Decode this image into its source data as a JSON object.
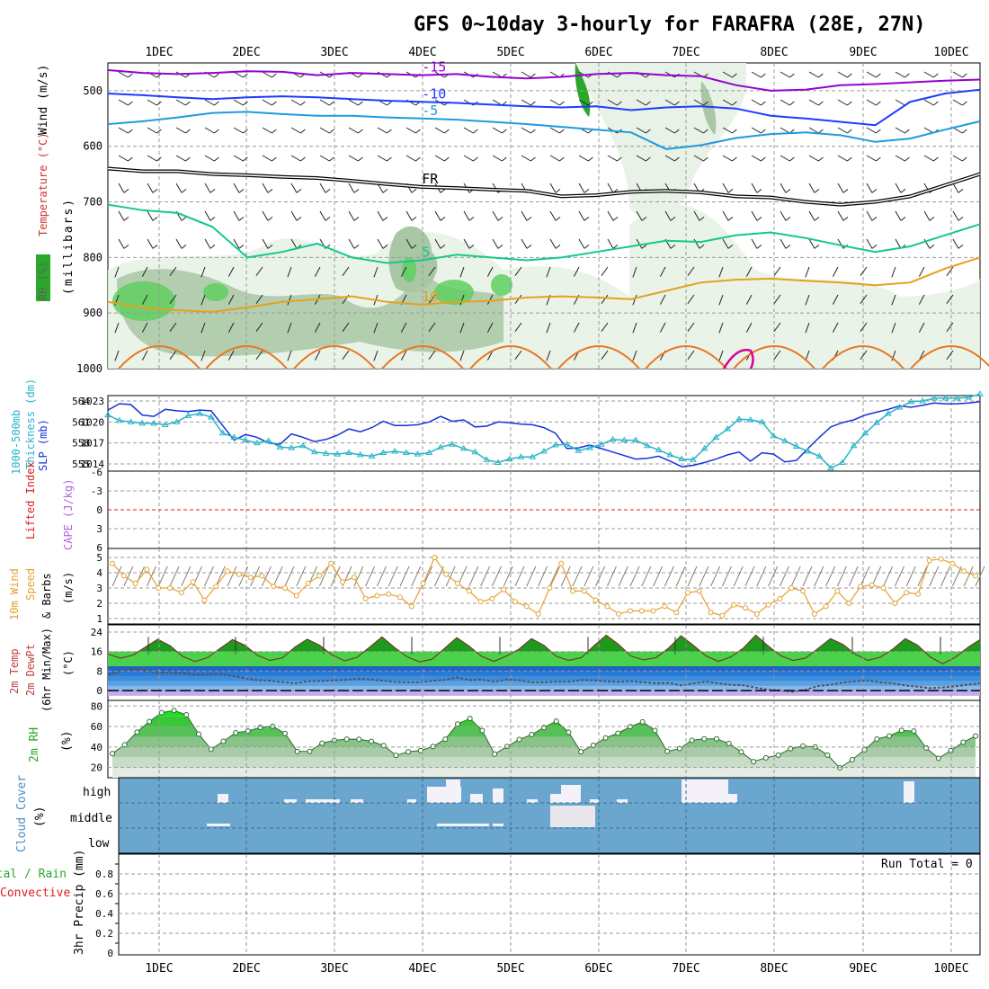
{
  "title": "GFS 0~10day 3-hourly for FARAFRA (28E, 27N)",
  "x_labels": [
    "1DEC",
    "2DEC",
    "3DEC",
    "4DEC",
    "5DEC",
    "6DEC",
    "7DEC",
    "8DEC",
    "9DEC",
    "10DEC"
  ],
  "chart_data": [
    {
      "panel": "upper-air",
      "type": "heatmap",
      "ylabel_parts": [
        "RH (%)",
        "Temperature (°C)",
        "Wind (m/s)",
        "(millibars)"
      ],
      "y_ticks": [
        500,
        600,
        700,
        800,
        900,
        1000
      ],
      "ylim": [
        1000,
        450
      ],
      "contour_labels": [
        "-15",
        "-10",
        "-5",
        "FR",
        "5",
        "10"
      ],
      "series": [
        {
          "name": "-15",
          "y": [
            463,
            468,
            470,
            468,
            465,
            466,
            472,
            468,
            470,
            472,
            470,
            475,
            478,
            475,
            470,
            468,
            472,
            474,
            490,
            500,
            498,
            490,
            488,
            485,
            482,
            480
          ]
        },
        {
          "name": "-10",
          "y": [
            505,
            508,
            512,
            515,
            512,
            510,
            512,
            515,
            518,
            520,
            522,
            525,
            528,
            530,
            528,
            535,
            530,
            528,
            532,
            545,
            550,
            556,
            562,
            520,
            505,
            498
          ]
        },
        {
          "name": "-5",
          "y": [
            560,
            555,
            548,
            540,
            538,
            542,
            545,
            545,
            548,
            550,
            552,
            556,
            560,
            565,
            570,
            575,
            605,
            598,
            585,
            578,
            575,
            580,
            592,
            586,
            570,
            555
          ]
        },
        {
          "name": "FR",
          "y": [
            640,
            645,
            645,
            650,
            652,
            655,
            657,
            662,
            668,
            673,
            675,
            678,
            680,
            690,
            688,
            682,
            680,
            683,
            690,
            692,
            700,
            705,
            700,
            690,
            670,
            650
          ]
        },
        {
          "name": "5",
          "y": [
            705,
            715,
            720,
            745,
            800,
            790,
            775,
            800,
            810,
            805,
            795,
            800,
            805,
            800,
            790,
            780,
            770,
            772,
            760,
            755,
            765,
            778,
            790,
            780,
            760,
            740
          ]
        },
        {
          "name": "10",
          "y": [
            880,
            890,
            895,
            898,
            890,
            880,
            875,
            870,
            880,
            885,
            880,
            878,
            872,
            870,
            872,
            875,
            860,
            845,
            840,
            838,
            842,
            845,
            850,
            845,
            820,
            800
          ]
        }
      ],
      "colors": {
        "minus15": "#9400d3",
        "minus10": "#1e3cff",
        "minus5": "#1e9be0",
        "freezing": "#000000",
        "plus5": "#14c88c",
        "plus10": "#e6a020",
        "plus15": "#e87820",
        "plus20": "#dc0096",
        "rh_light": "#e8f2e6",
        "rh_mid": "#a9c6a5",
        "rh_high": "#5fcf5f",
        "rh_dark": "#2aa82a"
      }
    },
    {
      "panel": "pressure-thickness",
      "type": "line",
      "ylabel_parts": [
        "1000-500mb",
        "Thickness (dm)",
        "SLP (mb)"
      ],
      "y_ticks_left": [
        564,
        561,
        558,
        555
      ],
      "y_ticks_right": [
        1023,
        1020,
        1017,
        1014
      ],
      "series": [
        {
          "name": "SLP",
          "color": "#1432dc",
          "values": [
            1021.7,
            1022.6,
            1022.5,
            1021.0,
            1020.8,
            1021.8,
            1021.6,
            1021.5,
            1021.7,
            1021.6,
            1019.5,
            1017.4,
            1018.2,
            1017.8,
            1017.0,
            1016.8,
            1018.3,
            1017.8,
            1017.2,
            1017.5,
            1018.1,
            1019.0,
            1018.6,
            1019.2,
            1020.1,
            1019.5,
            1019.5,
            1019.6,
            1020.0,
            1020.8,
            1020.1,
            1020.3,
            1019.3,
            1019.4,
            1020.0,
            1019.9,
            1019.7,
            1019.6,
            1019.2,
            1018.4,
            1016.2,
            1016.3,
            1016.7,
            1016.2,
            1015.7,
            1015.2,
            1014.7,
            1014.8,
            1015.1,
            1014.4,
            1013.6,
            1013.8,
            1014.2,
            1014.7,
            1015.3,
            1015.7,
            1014.4,
            1015.6,
            1015.4,
            1014.3,
            1014.5,
            1016.2,
            1017.8,
            1019.3,
            1019.9,
            1020.3,
            1021.0,
            1021.4,
            1021.8,
            1022.3,
            1022.1,
            1022.4,
            1022.7,
            1022.6,
            1022.6,
            1022.7,
            1022.9
          ]
        },
        {
          "name": "Thickness",
          "color": "#28b4c8",
          "values": [
            562.0,
            561.2,
            561.0,
            560.8,
            560.8,
            560.6,
            561.0,
            561.9,
            562.2,
            561.7,
            559.4,
            558.8,
            558.4,
            558.0,
            558.3,
            557.4,
            557.3,
            557.6,
            556.7,
            556.5,
            556.4,
            556.6,
            556.3,
            556.1,
            556.6,
            556.8,
            556.6,
            556.4,
            556.6,
            557.4,
            557.8,
            557.2,
            556.7,
            555.6,
            555.2,
            555.7,
            556.0,
            556.0,
            556.8,
            557.7,
            557.8,
            556.9,
            557.3,
            557.8,
            558.5,
            558.4,
            558.4,
            557.6,
            557.0,
            556.3,
            555.7,
            555.6,
            557.2,
            558.8,
            560.0,
            561.4,
            561.3,
            561.0,
            559.0,
            558.3,
            557.5,
            556.8,
            556.1,
            554.4,
            555.2,
            557.6,
            559.4,
            560.9,
            562.2,
            563.1,
            563.9,
            564.0,
            564.4,
            564.4,
            564.4,
            564.5,
            565.0
          ]
        }
      ]
    },
    {
      "panel": "instability",
      "type": "line",
      "ylabel_parts": [
        "Lifted Index",
        "CAPE (J/kg)"
      ],
      "y_ticks": [
        "-6",
        "-3",
        "0",
        "3",
        "6"
      ],
      "ylim": [
        6,
        -6
      ],
      "series": [
        {
          "name": "Lifted Index",
          "color": "#dc1e1e",
          "values": []
        },
        {
          "name": "CAPE",
          "color": "#b464dc",
          "values": []
        }
      ]
    },
    {
      "panel": "10m-wind",
      "type": "line",
      "ylabel_parts": [
        "10m Wind",
        "Speed",
        "& Barbs",
        "(m/s)"
      ],
      "y_ticks": [
        1,
        2,
        3,
        4,
        5
      ],
      "ylim": [
        0.8,
        5.2
      ],
      "series": [
        {
          "name": "Speed",
          "color": "#e6a032",
          "values": [
            4.6,
            3.8,
            3.3,
            4.2,
            3.0,
            3.0,
            2.7,
            3.4,
            2.2,
            3.1,
            4.1,
            3.9,
            3.7,
            3.8,
            3.1,
            3.0,
            2.5,
            3.3,
            3.8,
            4.6,
            3.4,
            3.7,
            2.3,
            2.5,
            2.6,
            2.4,
            1.8,
            3.3,
            5.0,
            3.9,
            3.3,
            2.8,
            2.1,
            2.3,
            2.9,
            2.1,
            1.8,
            1.3,
            3.0,
            4.6,
            2.8,
            2.8,
            2.2,
            1.8,
            1.3,
            1.5,
            1.5,
            1.5,
            1.8,
            1.4,
            2.7,
            2.8,
            1.4,
            1.2,
            1.9,
            1.7,
            1.3,
            1.9,
            2.3,
            3.0,
            2.8,
            1.3,
            1.8,
            2.8,
            2.0,
            3.1,
            3.2,
            3.0,
            2.0,
            2.7,
            2.6,
            4.8,
            4.9,
            4.6,
            4.1,
            3.8
          ]
        }
      ]
    },
    {
      "panel": "2m-temperature",
      "type": "area",
      "ylabel_parts": [
        "2m Temp",
        "2m DewPt",
        "(6hr Min/Max)",
        "(°C)"
      ],
      "y_ticks": [
        0,
        8,
        16,
        24
      ],
      "ylim": [
        -2,
        26
      ],
      "series": [
        {
          "name": "Temp",
          "color": "#4ad24a",
          "values": [
            15.0,
            13.3,
            14.5,
            17.8,
            21.0,
            18.4,
            14.0,
            11.9,
            13.5,
            17.3,
            20.9,
            18.6,
            14.5,
            12.4,
            13.4,
            17.8,
            21.1,
            18.6,
            14.6,
            12.2,
            13.6,
            17.8,
            22.0,
            17.7,
            13.9,
            11.8,
            12.8,
            17.2,
            21.7,
            18.2,
            14.0,
            12.0,
            14.2,
            17.0,
            21.3,
            18.6,
            14.0,
            12.4,
            13.5,
            18.3,
            22.7,
            18.9,
            14.1,
            12.6,
            13.5,
            17.4,
            22.5,
            18.5,
            14.2,
            12.0,
            13.8,
            17.4,
            22.7,
            18.3,
            14.3,
            12.4,
            13.3,
            17.3,
            21.3,
            18.9,
            14.9,
            12.4,
            13.7,
            17.0,
            21.3,
            18.6,
            13.8,
            11.0,
            13.6,
            17.6,
            20.9
          ]
        },
        {
          "name": "DewPt",
          "color": "#5a5050",
          "values": [
            6.5,
            7.9,
            8.9,
            8.2,
            7.4,
            7.4,
            7.2,
            6.5,
            6.6,
            6.8,
            6.1,
            5.1,
            4.3,
            4.1,
            3.5,
            3.0,
            3.8,
            4.0,
            4.2,
            4.4,
            4.8,
            4.6,
            4.1,
            3.6,
            3.4,
            3.4,
            4.0,
            4.4,
            5.4,
            4.3,
            4.5,
            3.7,
            4.5,
            4.3,
            3.4,
            3.4,
            3.7,
            3.7,
            4.3,
            4.2,
            3.8,
            3.6,
            3.9,
            3.4,
            3.0,
            3.1,
            2.2,
            3.0,
            3.7,
            3.0,
            2.4,
            2.2,
            1.2,
            0.4,
            0.0,
            -0.4,
            0.3,
            1.9,
            2.4,
            3.3,
            3.8,
            4.2,
            3.4,
            3.0,
            2.1,
            1.6,
            1.0,
            1.3,
            1.8,
            2.4,
            3.0
          ]
        }
      ]
    },
    {
      "panel": "2m-rh",
      "type": "area",
      "ylabel_parts": [
        "2m RH",
        "(%)"
      ],
      "y_ticks": [
        20,
        40,
        60,
        80
      ],
      "ylim": [
        10,
        82
      ],
      "series": [
        {
          "name": "RH",
          "color": "#37c837",
          "values": [
            33.6,
            42.2,
            54.5,
            64.9,
            73.6,
            75.6,
            71.5,
            52.6,
            37.8,
            45.6,
            53.9,
            55.6,
            59.2,
            60.2,
            53.2,
            35.6,
            35.7,
            43.7,
            46.5,
            47.7,
            47.5,
            45.6,
            41.4,
            31.8,
            35.4,
            36.6,
            40.5,
            47.6,
            62.5,
            67.8,
            56.1,
            33.1,
            40.5,
            47.3,
            52.1,
            59.0,
            65.2,
            54.3,
            35.4,
            41.6,
            48.9,
            53.5,
            59.8,
            64.6,
            56.1,
            35.8,
            38.4,
            46.6,
            48.0,
            48.0,
            43.5,
            35.2,
            25.7,
            29.4,
            32.1,
            38.4,
            40.9,
            40.1,
            32.1,
            19.7,
            27.6,
            37.3,
            47.8,
            50.7,
            56.2,
            55.5,
            39.1,
            29.0,
            36.5,
            44.7,
            50.7
          ]
        }
      ]
    },
    {
      "panel": "cloud-cover",
      "type": "heatmap",
      "ylabel_parts": [
        "Cloud Cover",
        "(%)"
      ],
      "y_ticks": [
        "high",
        "middle",
        "low"
      ],
      "series": [
        {
          "name": "high",
          "values": [
            0,
            0,
            0,
            0,
            0,
            0,
            0,
            0,
            0,
            0,
            0,
            0,
            0,
            0,
            0,
            0,
            0,
            0,
            0,
            0,
            0,
            0,
            0,
            0,
            0,
            0,
            0,
            0,
            0,
            0,
            0,
            0,
            0,
            0,
            0,
            0,
            0,
            0,
            0,
            0,
            0,
            0,
            0,
            0,
            0,
            0,
            0,
            0,
            0,
            0,
            0,
            0,
            0,
            0,
            0,
            0,
            0,
            0,
            0,
            0,
            0,
            0,
            0,
            0,
            0,
            0,
            0,
            0,
            0,
            0,
            0,
            0,
            0,
            0,
            0,
            0,
            0,
            0,
            0,
            0,
            0,
            0,
            0,
            0,
            0,
            0,
            0,
            0,
            0,
            0,
            0,
            0,
            0,
            0,
            0
          ]
        },
        {
          "name": "middle",
          "values": []
        },
        {
          "name": "low",
          "values": []
        }
      ],
      "colors": {
        "background": "#6ba6cf",
        "cloud": "#f4f2f8",
        "cloud_middle": "#e8e8ec"
      }
    },
    {
      "panel": "precipitation",
      "type": "bar",
      "ylabel_parts": [
        "Total / Rain",
        "Convective",
        "3hr Precip (mm)"
      ],
      "y_ticks": [
        0,
        0.2,
        0.4,
        0.6,
        0.8
      ],
      "ylim": [
        0,
        1.0
      ],
      "run_total_label": "Run Total = 0",
      "series": [
        {
          "name": "Total",
          "values": []
        }
      ]
    }
  ]
}
